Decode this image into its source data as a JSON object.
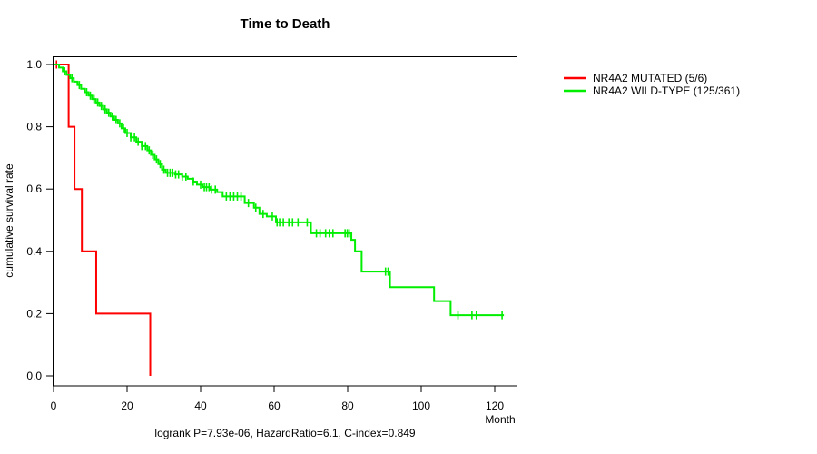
{
  "figure": {
    "title": "Time to Death",
    "y_axis_title": "cumulative survival rate",
    "x_unit_label": "Month",
    "caption": "logrank P=7.93e-06, HazardRatio=6.1, C-index=0.849"
  },
  "chart_data": {
    "type": "line",
    "subtype": "kaplan-meier-step",
    "title": "Time to Death",
    "xlabel": "Month",
    "ylabel": "cumulative survival rate",
    "xlim": [
      0,
      126
    ],
    "ylim": [
      0.0,
      1.0
    ],
    "xticks": [
      0,
      20,
      40,
      60,
      80,
      100,
      120
    ],
    "yticks": [
      0.0,
      0.2,
      0.4,
      0.6,
      0.8,
      1.0
    ],
    "ytick_labels": [
      "0.0",
      "0.2",
      "0.4",
      "0.6",
      "0.8",
      "1.0"
    ],
    "grid": false,
    "legend_position": "right-outside",
    "annotation": "logrank P=7.93e-06, HazardRatio=6.1, C-index=0.849",
    "axis_color": "#000000",
    "series": [
      {
        "name": "NR4A2 MUTATED (5/6)",
        "color": "#FF0000",
        "step_points": [
          [
            0,
            1.0
          ],
          [
            4.1,
            0.8
          ],
          [
            5.7,
            0.6
          ],
          [
            7.7,
            0.4
          ],
          [
            11.6,
            0.2
          ],
          [
            26.3,
            0.0
          ]
        ],
        "censor_times": [
          0.8
        ]
      },
      {
        "name": "NR4A2 WILD-TYPE (125/361)",
        "color": "#00EE00",
        "step_points": [
          [
            0,
            1.0
          ],
          [
            1.5,
            0.99
          ],
          [
            2.5,
            0.978
          ],
          [
            3.5,
            0.967
          ],
          [
            4.5,
            0.956
          ],
          [
            5.5,
            0.945
          ],
          [
            6.5,
            0.934
          ],
          [
            7.5,
            0.922
          ],
          [
            8.5,
            0.911
          ],
          [
            9.5,
            0.9
          ],
          [
            10.5,
            0.889
          ],
          [
            11.5,
            0.878
          ],
          [
            12.5,
            0.867
          ],
          [
            13.5,
            0.856
          ],
          [
            14.5,
            0.845
          ],
          [
            15.5,
            0.833
          ],
          [
            16.5,
            0.822
          ],
          [
            17.5,
            0.811
          ],
          [
            18.5,
            0.795
          ],
          [
            19.5,
            0.78
          ],
          [
            21,
            0.766
          ],
          [
            22.5,
            0.752
          ],
          [
            24,
            0.738
          ],
          [
            25.5,
            0.724
          ],
          [
            26.5,
            0.71
          ],
          [
            27.5,
            0.695
          ],
          [
            28.5,
            0.68
          ],
          [
            29.5,
            0.662
          ],
          [
            30.5,
            0.652
          ],
          [
            33,
            0.647
          ],
          [
            35,
            0.64
          ],
          [
            36.5,
            0.633
          ],
          [
            38,
            0.624
          ],
          [
            39,
            0.614
          ],
          [
            40.5,
            0.606
          ],
          [
            42.5,
            0.598
          ],
          [
            44.5,
            0.59
          ],
          [
            46,
            0.576
          ],
          [
            52,
            0.555
          ],
          [
            54.5,
            0.54
          ],
          [
            56,
            0.52
          ],
          [
            58,
            0.512
          ],
          [
            60.5,
            0.493
          ],
          [
            70,
            0.458
          ],
          [
            81,
            0.437
          ],
          [
            82,
            0.4
          ],
          [
            83.8,
            0.335
          ],
          [
            91.5,
            0.285
          ],
          [
            103.5,
            0.24
          ],
          [
            108,
            0.195
          ],
          [
            122.5,
            0.195
          ]
        ],
        "censor_times": [
          3,
          5,
          7,
          9,
          10,
          11,
          12,
          13,
          14,
          15,
          16,
          17,
          18,
          19,
          20,
          21,
          22,
          23,
          24,
          25,
          26,
          27,
          28,
          29,
          30,
          31,
          31.7,
          32.4,
          33.2,
          34,
          35,
          36,
          38,
          40,
          41,
          41.6,
          42.3,
          43,
          44,
          47,
          48,
          49,
          50,
          51,
          53,
          55,
          57,
          59.5,
          60.8,
          61.5,
          62.5,
          64,
          65,
          66.5,
          69,
          71.5,
          72.5,
          74,
          75,
          76,
          79.3,
          79.9,
          80.4,
          90.3,
          91,
          110,
          113.8,
          115,
          122
        ]
      }
    ]
  }
}
